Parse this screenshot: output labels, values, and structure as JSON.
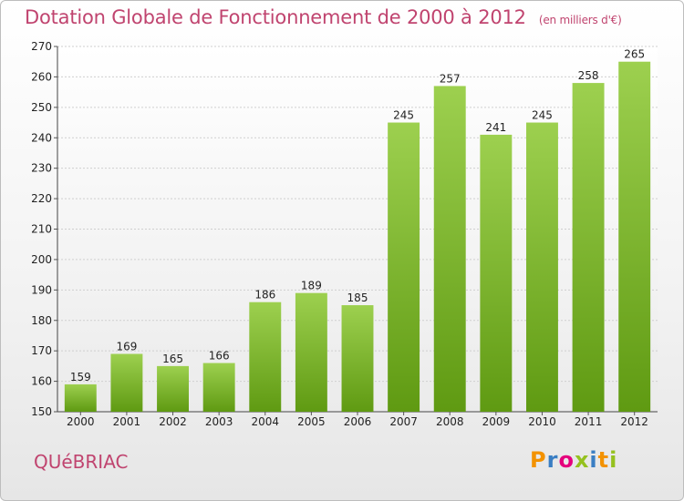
{
  "title": "Dotation Globale de Fonctionnement de 2000 à 2012",
  "subtitle": "(en milliers d'€)",
  "commune": "QUéBRIAC",
  "logo": {
    "letters": [
      "P",
      "r",
      "o",
      "x",
      "i",
      "t",
      "i"
    ],
    "colors": [
      "#f39200",
      "#3a7ec3",
      "#e5007d",
      "#95c11f",
      "#3a7ec3",
      "#f39200",
      "#95c11f"
    ]
  },
  "colors": {
    "bar_top": "#9dd04f",
    "bar_bottom": "#5f9a12",
    "title": "#c0446f"
  },
  "chart_data": {
    "type": "bar",
    "categories": [
      "2000",
      "2001",
      "2002",
      "2003",
      "2004",
      "2005",
      "2006",
      "2007",
      "2008",
      "2009",
      "2010",
      "2011",
      "2012"
    ],
    "values": [
      159,
      169,
      165,
      166,
      186,
      189,
      185,
      245,
      257,
      241,
      245,
      258,
      265
    ],
    "ylim": [
      150,
      270
    ],
    "yticks": [
      150,
      160,
      170,
      180,
      190,
      200,
      210,
      220,
      230,
      240,
      250,
      260,
      270
    ],
    "grid": true,
    "title": "Dotation Globale de Fonctionnement de 2000 à 2012",
    "xlabel": "",
    "ylabel": ""
  }
}
